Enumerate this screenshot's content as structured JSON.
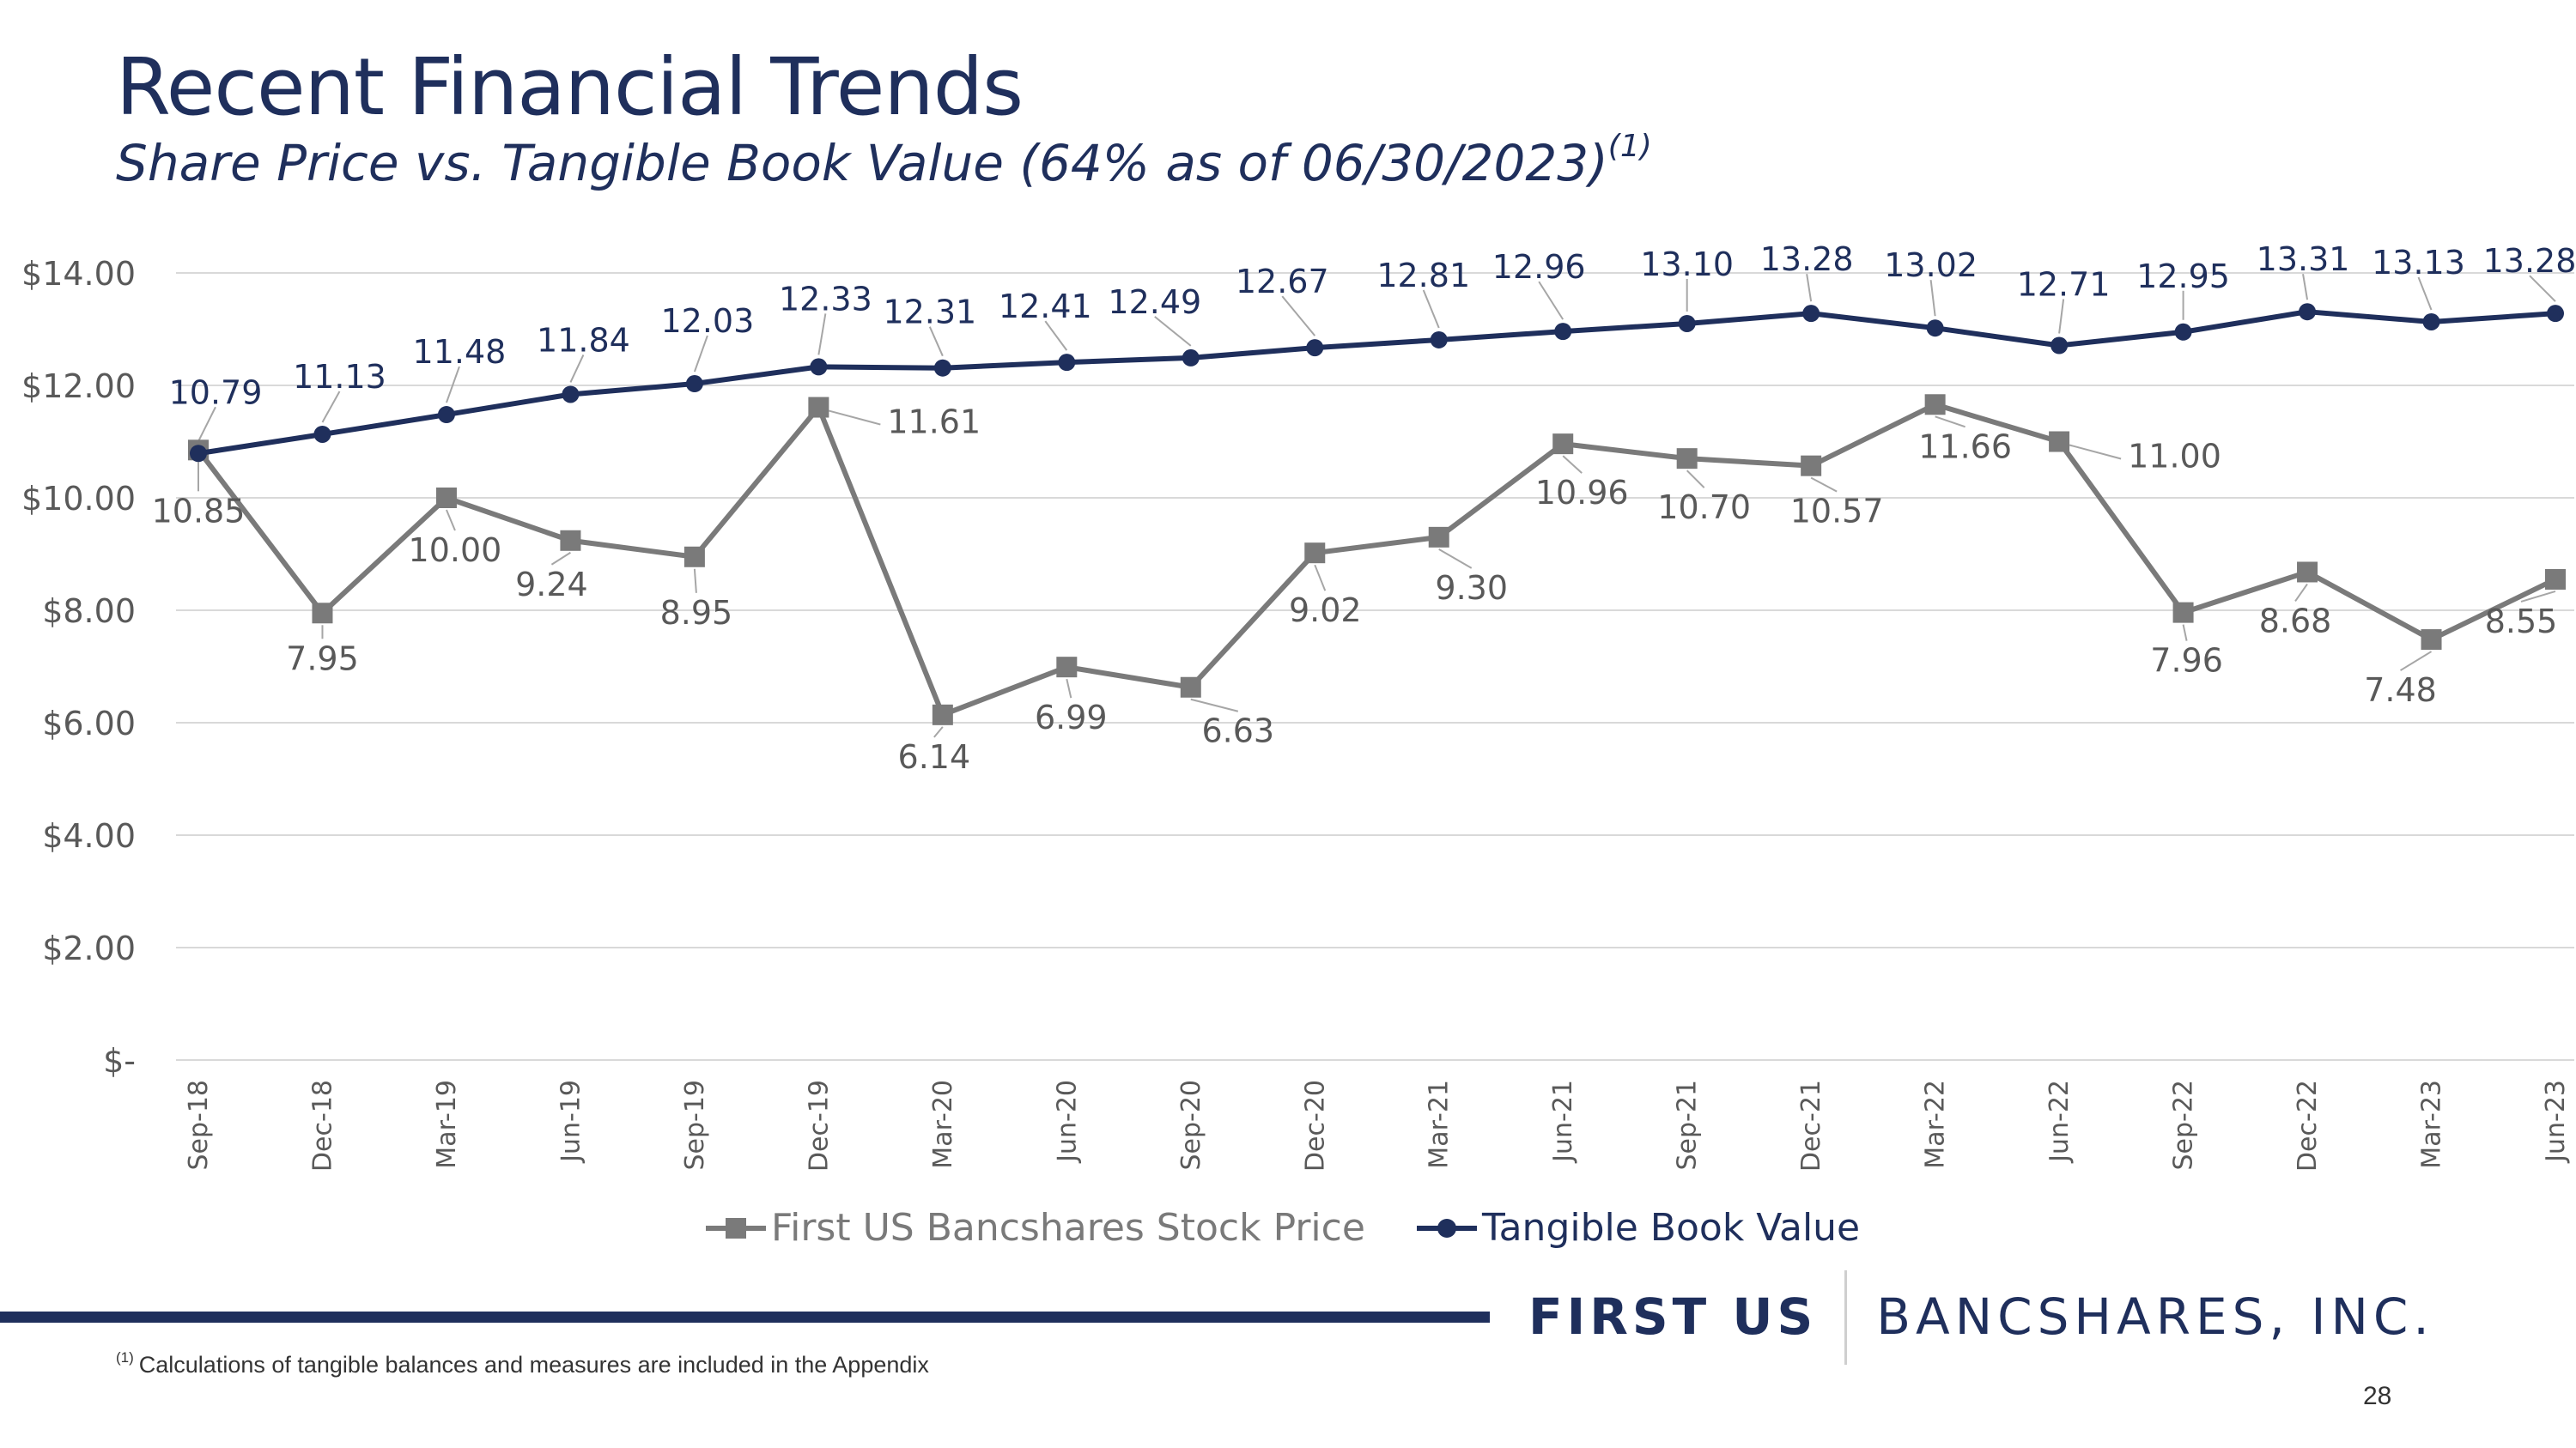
{
  "title": "Recent Financial Trends",
  "subtitle": "Share Price vs. Tangible Book Value (64% as of 06/30/2023)",
  "subtitle_sup": "(1)",
  "chart_data": {
    "type": "line",
    "title": "Share Price vs. Tangible Book Value (64% as of 06/30/2023)",
    "xlabel": "",
    "ylabel": "",
    "ylim": [
      0,
      14
    ],
    "y_ticks": [
      {
        "value": 0,
        "label": "$-"
      },
      {
        "value": 2,
        "label": "$2.00"
      },
      {
        "value": 4,
        "label": "$4.00"
      },
      {
        "value": 6,
        "label": "$6.00"
      },
      {
        "value": 8,
        "label": "$8.00"
      },
      {
        "value": 10,
        "label": "$10.00"
      },
      {
        "value": 12,
        "label": "$12.00"
      },
      {
        "value": 14,
        "label": "$14.00"
      }
    ],
    "grid": true,
    "legend_position": "bottom",
    "categories": [
      "Sep-18",
      "Dec-18",
      "Mar-19",
      "Jun-19",
      "Sep-19",
      "Dec-19",
      "Mar-20",
      "Jun-20",
      "Sep-20",
      "Dec-20",
      "Mar-21",
      "Jun-21",
      "Sep-21",
      "Dec-21",
      "Mar-22",
      "Jun-22",
      "Sep-22",
      "Dec-22",
      "Mar-23",
      "Jun-23"
    ],
    "series": [
      {
        "name": "First US Bancshares Stock Price",
        "color": "#7a7a7a",
        "marker": "square",
        "values": [
          10.85,
          7.95,
          10.0,
          9.24,
          8.95,
          11.61,
          6.14,
          6.99,
          6.63,
          9.02,
          9.3,
          10.96,
          10.7,
          10.57,
          11.66,
          11.0,
          7.96,
          8.68,
          7.48,
          8.55
        ],
        "labels": [
          "10.85",
          "7.95",
          "10.00",
          "9.24",
          "8.95",
          "11.61",
          "6.14",
          "6.99",
          "6.63",
          "9.02",
          "9.30",
          "10.96",
          "10.70",
          "10.57",
          "11.66",
          "11.00",
          "7.96",
          "8.68",
          "7.48",
          "8.55"
        ]
      },
      {
        "name": "Tangible Book Value",
        "color": "#1f2f5c",
        "marker": "circle",
        "values": [
          10.79,
          11.13,
          11.48,
          11.84,
          12.03,
          12.33,
          12.31,
          12.41,
          12.49,
          12.67,
          12.81,
          12.96,
          13.1,
          13.28,
          13.02,
          12.71,
          12.95,
          13.31,
          13.13,
          13.28
        ],
        "labels": [
          "10.79",
          "11.13",
          "11.48",
          "11.84",
          "12.03",
          "12.33",
          "12.31",
          "12.41",
          "12.49",
          "12.67",
          "12.81",
          "12.96",
          "13.10",
          "13.28",
          "13.02",
          "12.71",
          "12.95",
          "13.31",
          "13.13",
          "13.28"
        ]
      }
    ]
  },
  "legend": {
    "stock": "First US Bancshares Stock Price",
    "tbv": "Tangible Book Value"
  },
  "logo": {
    "bold": "FIRST US",
    "light": "BANCSHARES, INC."
  },
  "footnote": {
    "marker": "(1)",
    "text": "Calculations of tangible balances and measures are included in the Appendix"
  },
  "page_number": "28",
  "colors": {
    "navy": "#1f2f5c",
    "gray": "#7a7a7a",
    "grid": "#d9d9d9"
  }
}
